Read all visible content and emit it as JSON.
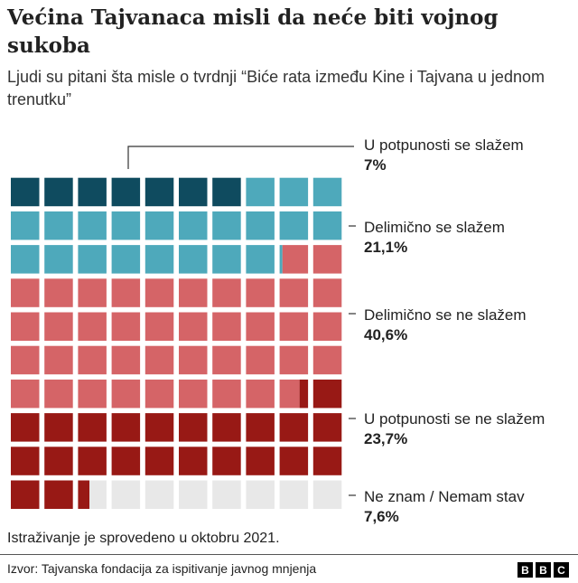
{
  "title": "Većina Tajvanaca misli da neće biti vojnog sukoba",
  "subtitle": "Ljudi su pitani šta misle o tvrdnji “Biće rata između Kine i Tajvana u jednom trenutku”",
  "chart_data": {
    "type": "waffle",
    "grid": [
      10,
      10
    ],
    "series": [
      {
        "name": "U potpunosti se slažem",
        "value": 7,
        "label": "7%",
        "color": "#0f4b5f"
      },
      {
        "name": "Delimično se slažem",
        "value": 21.1,
        "label": "21,1%",
        "color": "#4ea9bb"
      },
      {
        "name": "Delimično se ne slažem",
        "value": 40.6,
        "label": "40,6%",
        "color": "#d56467"
      },
      {
        "name": "U potpunosti se ne slažem",
        "value": 23.7,
        "label": "23,7%",
        "color": "#981915"
      },
      {
        "name": "Ne znam / Nemam stav",
        "value": 7.6,
        "label": "7,6%",
        "color": "#e8e8e8"
      }
    ]
  },
  "note": "Istraživanje je sprovedeno u oktobru 2021.",
  "source": "Izvor: Tajvanska fondacija za ispitivanje javnog mnjenja",
  "logo": [
    "B",
    "B",
    "C"
  ]
}
